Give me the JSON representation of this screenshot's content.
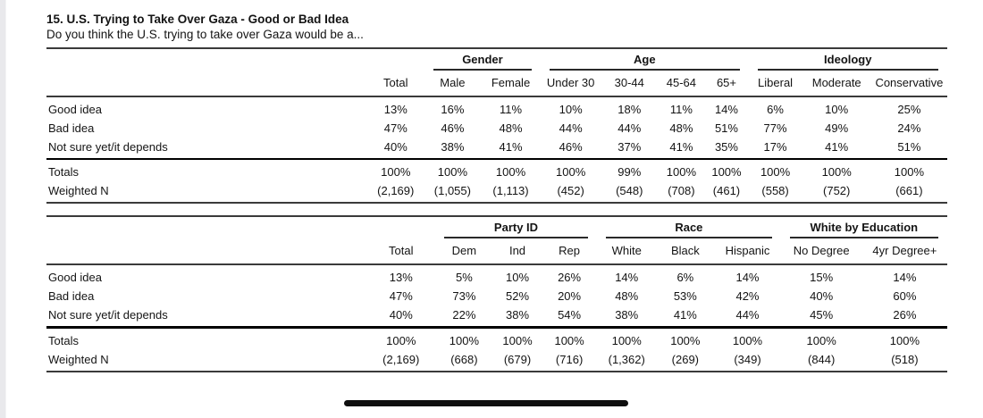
{
  "title": "15. U.S. Trying to Take Over Gaza - Good or Bad Idea",
  "subtitle": "Do you think the U.S. trying to take over Gaza would be a...",
  "tables": [
    {
      "group_headers": [
        {
          "label": "Gender",
          "cols": 2
        },
        {
          "label": "Age",
          "cols": 4
        },
        {
          "label": "Ideology",
          "cols": 3
        }
      ],
      "columns": [
        "",
        "Total",
        "Male",
        "Female",
        "Under 30",
        "30-44",
        "45-64",
        "65+",
        "Liberal",
        "Moderate",
        "Conservative"
      ],
      "rows": [
        {
          "label": "Good idea",
          "values": [
            "13%",
            "16%",
            "11%",
            "10%",
            "18%",
            "11%",
            "14%",
            "6%",
            "10%",
            "25%"
          ]
        },
        {
          "label": "Bad idea",
          "values": [
            "47%",
            "46%",
            "48%",
            "44%",
            "44%",
            "48%",
            "51%",
            "77%",
            "49%",
            "24%"
          ]
        },
        {
          "label": "Not sure yet/it depends",
          "values": [
            "40%",
            "38%",
            "41%",
            "46%",
            "37%",
            "41%",
            "35%",
            "17%",
            "41%",
            "51%"
          ]
        }
      ],
      "totals": [
        {
          "label": "Totals",
          "values": [
            "100%",
            "100%",
            "100%",
            "100%",
            "99%",
            "100%",
            "100%",
            "100%",
            "100%",
            "100%"
          ]
        },
        {
          "label": "Weighted N",
          "values": [
            "(2,169)",
            "(1,055)",
            "(1,113)",
            "(452)",
            "(548)",
            "(708)",
            "(461)",
            "(558)",
            "(752)",
            "(661)"
          ]
        }
      ]
    },
    {
      "group_headers": [
        {
          "label": "Party ID",
          "cols": 3
        },
        {
          "label": "Race",
          "cols": 3
        },
        {
          "label": "White by Education",
          "cols": 2
        }
      ],
      "columns": [
        "",
        "Total",
        "Dem",
        "Ind",
        "Rep",
        "White",
        "Black",
        "Hispanic",
        "No Degree",
        "4yr Degree+"
      ],
      "rows": [
        {
          "label": "Good idea",
          "values": [
            "13%",
            "5%",
            "10%",
            "26%",
            "14%",
            "6%",
            "14%",
            "15%",
            "14%"
          ]
        },
        {
          "label": "Bad idea",
          "values": [
            "47%",
            "73%",
            "52%",
            "20%",
            "48%",
            "53%",
            "42%",
            "40%",
            "60%"
          ]
        },
        {
          "label": "Not sure yet/it depends",
          "values": [
            "40%",
            "22%",
            "38%",
            "54%",
            "38%",
            "41%",
            "44%",
            "45%",
            "26%"
          ]
        }
      ],
      "totals": [
        {
          "label": "Totals",
          "values": [
            "100%",
            "100%",
            "100%",
            "100%",
            "100%",
            "100%",
            "100%",
            "100%",
            "100%"
          ]
        },
        {
          "label": "Weighted N",
          "values": [
            "(2,169)",
            "(668)",
            "(679)",
            "(716)",
            "(1,362)",
            "(269)",
            "(349)",
            "(844)",
            "(518)"
          ]
        }
      ]
    }
  ]
}
